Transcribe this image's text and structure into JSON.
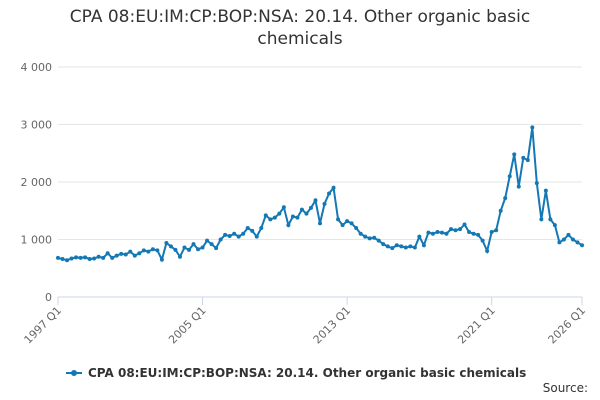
{
  "chart_data": {
    "type": "line",
    "title": "CPA 08:EU:IM:CP:BOP:NSA: 20.14. Other organic basic chemicals",
    "source": "Source:",
    "categories": [
      "1997 Q1",
      null,
      null,
      null,
      null,
      null,
      null,
      null,
      null,
      null,
      null,
      null,
      null,
      null,
      null,
      null,
      null,
      null,
      null,
      null,
      null,
      null,
      null,
      null,
      null,
      null,
      null,
      null,
      null,
      null,
      null,
      null,
      "2005 Q1",
      null,
      null,
      null,
      null,
      null,
      null,
      null,
      null,
      null,
      null,
      null,
      null,
      null,
      null,
      null,
      null,
      null,
      null,
      null,
      null,
      null,
      null,
      null,
      null,
      null,
      null,
      null,
      null,
      null,
      null,
      null,
      "2013 Q1",
      null,
      null,
      null,
      null,
      null,
      null,
      null,
      null,
      null,
      null,
      null,
      null,
      null,
      null,
      null,
      null,
      null,
      null,
      null,
      null,
      null,
      null,
      null,
      null,
      null,
      null,
      null,
      null,
      null,
      null,
      null,
      "2021 Q1",
      null,
      null,
      null,
      null,
      null,
      null,
      null,
      null,
      null,
      null,
      null,
      null,
      null,
      null,
      null,
      null,
      null,
      null,
      null,
      "2026 Q1"
    ],
    "series": [
      {
        "name": "CPA 08:EU:IM:CP:BOP:NSA: 20.14. Other organic basic chemicals",
        "color": "#1478b4",
        "values": [
          680,
          660,
          640,
          670,
          690,
          680,
          690,
          660,
          670,
          700,
          680,
          760,
          680,
          720,
          750,
          740,
          790,
          720,
          760,
          810,
          790,
          830,
          810,
          650,
          940,
          880,
          820,
          700,
          860,
          820,
          920,
          830,
          860,
          980,
          920,
          850,
          1000,
          1080,
          1060,
          1100,
          1050,
          1100,
          1200,
          1150,
          1050,
          1200,
          1420,
          1350,
          1380,
          1450,
          1560,
          1250,
          1400,
          1380,
          1520,
          1450,
          1550,
          1680,
          1280,
          1620,
          1800,
          1900,
          1350,
          1250,
          1320,
          1280,
          1200,
          1100,
          1050,
          1020,
          1030,
          980,
          920,
          880,
          850,
          900,
          880,
          860,
          880,
          860,
          1050,
          900,
          1120,
          1100,
          1130,
          1120,
          1100,
          1180,
          1160,
          1180,
          1260,
          1130,
          1100,
          1080,
          980,
          800,
          1130,
          1160,
          1500,
          1720,
          2100,
          2480,
          1920,
          2420,
          2380,
          2950,
          1980,
          1350,
          1850,
          1350,
          1250,
          950,
          1000,
          1080,
          1000,
          950,
          900
        ]
      }
    ],
    "ylim": [
      0,
      4000
    ],
    "yticks": [
      0,
      {
        "value": 1000,
        "label": "1 000"
      },
      {
        "value": 2000,
        "label": "2 000"
      },
      {
        "value": 3000,
        "label": "3 000"
      },
      {
        "value": 4000,
        "label": "4 000"
      }
    ],
    "grid": true,
    "legend": "bottom"
  }
}
